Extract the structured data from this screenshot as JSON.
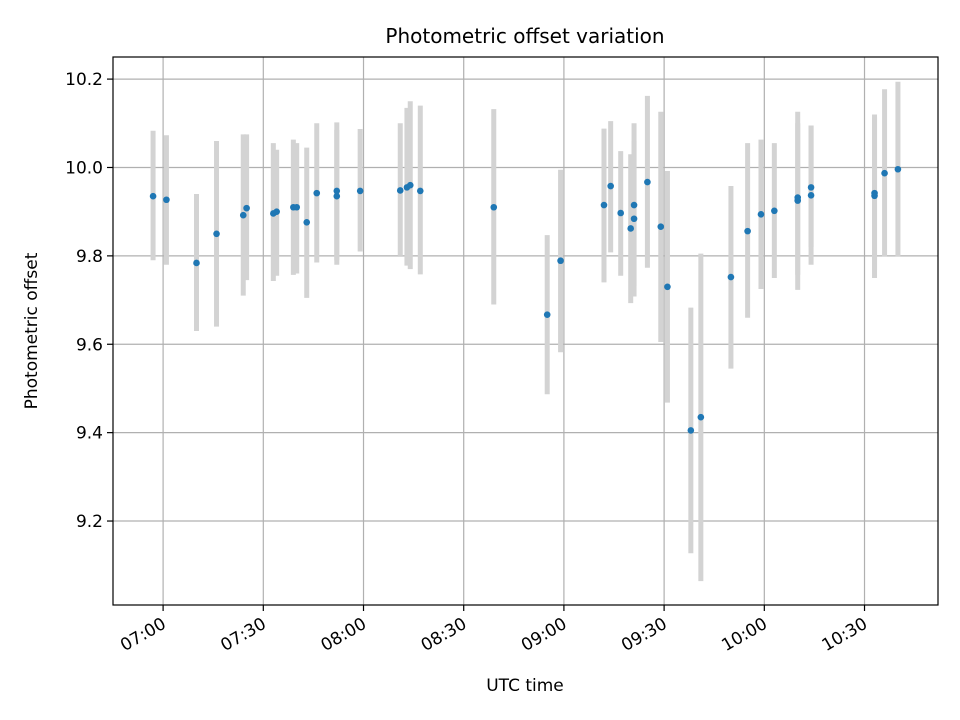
{
  "chart_data": {
    "type": "scatter",
    "title": "Photometric offset variation",
    "xlabel": "UTC time",
    "ylabel": "Photometric offset",
    "x_ticks": [
      "07:00",
      "07:30",
      "08:00",
      "08:30",
      "09:00",
      "09:30",
      "10:00",
      "10:30"
    ],
    "y_ticks": [
      "9.2",
      "9.4",
      "9.6",
      "9.8",
      "10.0",
      "10.2"
    ],
    "xlim": [
      "06:45",
      "10:52"
    ],
    "ylim": [
      9.01,
      10.25
    ],
    "grid": true,
    "colors": {
      "point": "#1f77b4",
      "errorbar": "#d3d3d3",
      "grid": "#b0b0b0"
    },
    "series": [
      {
        "x": [
          "06:57",
          "07:01",
          "07:10",
          "07:16",
          "07:24",
          "07:25",
          "07:33",
          "07:34",
          "07:39",
          "07:40",
          "07:43",
          "07:46",
          "07:52",
          "07:52",
          "07:59",
          "08:11",
          "08:13",
          "08:14",
          "08:17",
          "08:39",
          "08:55",
          "08:59",
          "09:12",
          "09:14",
          "09:17",
          "09:20",
          "09:21",
          "09:21",
          "09:25",
          "09:29",
          "09:31",
          "09:38",
          "09:41",
          "09:50",
          "09:55",
          "09:59",
          "10:03",
          "10:10",
          "10:10",
          "10:14",
          "10:14",
          "10:33",
          "10:33",
          "10:36",
          "10:40"
        ],
        "y": [
          9.935,
          9.927,
          9.784,
          9.85,
          9.892,
          9.908,
          9.896,
          9.9,
          9.91,
          9.91,
          9.876,
          9.942,
          9.935,
          9.947,
          9.947,
          9.948,
          9.955,
          9.96,
          9.947,
          9.91,
          9.667,
          9.789,
          9.915,
          9.958,
          9.897,
          9.862,
          9.884,
          9.915,
          9.967,
          9.866,
          9.73,
          9.405,
          9.435,
          9.752,
          9.856,
          9.894,
          9.902,
          9.925,
          9.932,
          9.955,
          9.937,
          9.936,
          9.942,
          9.987,
          9.996
        ],
        "yerr_low": [
          9.79,
          9.78,
          9.63,
          9.64,
          9.71,
          9.745,
          9.743,
          9.755,
          9.757,
          9.76,
          9.705,
          9.785,
          9.78,
          9.79,
          9.81,
          9.8,
          9.778,
          9.77,
          9.758,
          9.69,
          9.487,
          9.582,
          9.74,
          9.808,
          9.755,
          9.693,
          9.708,
          9.732,
          9.773,
          9.605,
          9.468,
          9.127,
          9.064,
          9.545,
          9.66,
          9.725,
          9.75,
          9.723,
          9.757,
          9.82,
          9.78,
          9.75,
          9.768,
          9.798,
          9.798
        ],
        "yerr_high": [
          10.083,
          10.073,
          9.94,
          10.06,
          10.075,
          10.075,
          10.055,
          10.04,
          10.063,
          10.055,
          10.045,
          10.1,
          10.085,
          10.102,
          10.087,
          10.1,
          10.135,
          10.15,
          10.14,
          10.132,
          9.847,
          9.995,
          10.088,
          10.105,
          10.037,
          10.03,
          10.06,
          10.1,
          10.162,
          10.126,
          9.992,
          9.683,
          9.805,
          9.958,
          10.055,
          10.063,
          10.055,
          10.126,
          10.1,
          10.095,
          10.095,
          10.12,
          10.113,
          10.177,
          10.194
        ]
      }
    ]
  }
}
